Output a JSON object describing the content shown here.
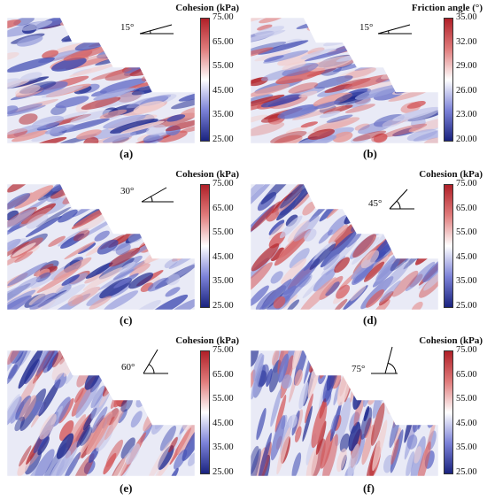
{
  "colors": {
    "high": "#b02028",
    "mid": "#ffffff",
    "low": "#1a237f"
  },
  "panels": [
    {
      "id": "a",
      "label": "(a)",
      "quantity": "Cohesion (kPa)",
      "angle": "15°",
      "ticks": [
        "75.00",
        "65.00",
        "55.00",
        "45.00",
        "35.00",
        "25.00"
      ]
    },
    {
      "id": "b",
      "label": "(b)",
      "quantity": "Friction angle (°)",
      "angle": "15°",
      "ticks": [
        "35.00",
        "32.00",
        "29.00",
        "26.00",
        "23.00",
        "20.00"
      ]
    },
    {
      "id": "c",
      "label": "(c)",
      "quantity": "Cohesion (kPa)",
      "angle": "30°",
      "ticks": [
        "75.00",
        "65.00",
        "55.00",
        "45.00",
        "35.00",
        "25.00"
      ]
    },
    {
      "id": "d",
      "label": "(d)",
      "quantity": "Cohesion (kPa)",
      "angle": "45°",
      "ticks": [
        "75.00",
        "65.00",
        "55.00",
        "45.00",
        "35.00",
        "25.00"
      ]
    },
    {
      "id": "e",
      "label": "(e)",
      "quantity": "Cohesion (kPa)",
      "angle": "60°",
      "ticks": [
        "75.00",
        "65.00",
        "55.00",
        "45.00",
        "35.00",
        "25.00"
      ]
    },
    {
      "id": "f",
      "label": "(f)",
      "quantity": "Cohesion (kPa)",
      "angle": "75°",
      "ticks": [
        "75.00",
        "65.00",
        "55.00",
        "45.00",
        "35.00",
        "25.00"
      ]
    }
  ]
}
